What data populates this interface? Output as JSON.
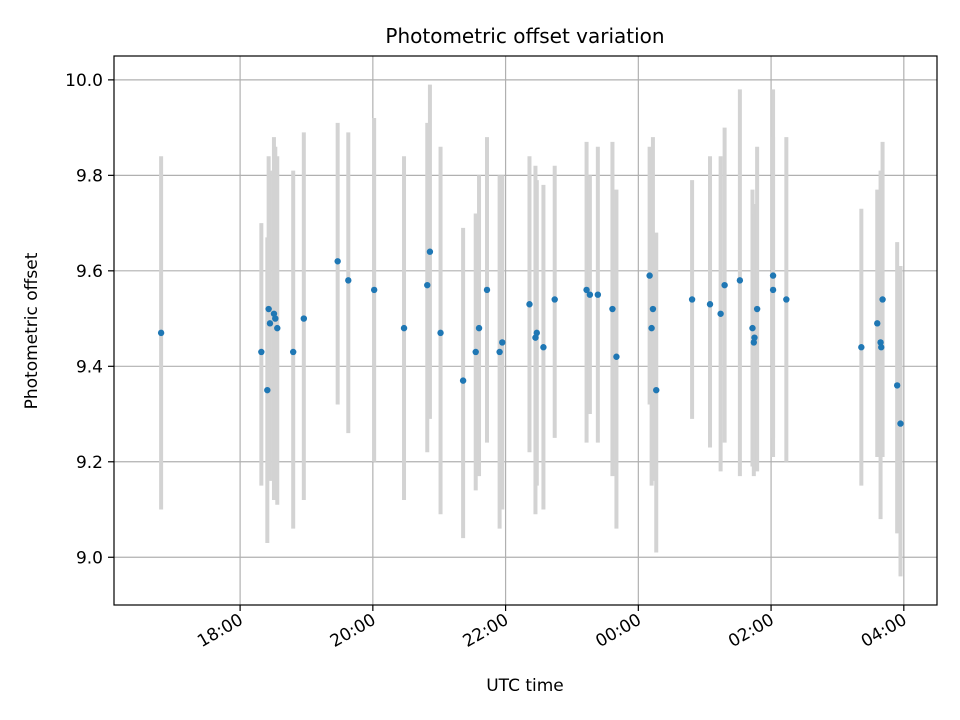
{
  "chart_data": {
    "type": "scatter",
    "title": "Photometric offset variation",
    "xlabel": "UTC time",
    "ylabel": "Photometric offset",
    "grid": true,
    "x_unit": "hours relative to 00:00 UTC",
    "xlim": [
      -7.9,
      4.5
    ],
    "ylim": [
      8.9,
      10.05
    ],
    "xticks": [
      {
        "value": -6,
        "label": "18:00"
      },
      {
        "value": -4,
        "label": "20:00"
      },
      {
        "value": -2,
        "label": "22:00"
      },
      {
        "value": 0,
        "label": "00:00"
      },
      {
        "value": 2,
        "label": "02:00"
      },
      {
        "value": 4,
        "label": "04:00"
      }
    ],
    "yticks": [
      {
        "value": 9.0,
        "label": "9.0"
      },
      {
        "value": 9.2,
        "label": "9.2"
      },
      {
        "value": 9.4,
        "label": "9.4"
      },
      {
        "value": 9.6,
        "label": "9.6"
      },
      {
        "value": 9.8,
        "label": "9.8"
      },
      {
        "value": 10.0,
        "label": "10.0"
      }
    ],
    "colors": {
      "points": "#1f77b4",
      "errorbars": "#d3d3d3",
      "grid": "#b0b0b0"
    },
    "series": [
      {
        "name": "offset",
        "points": [
          {
            "x": -7.19,
            "y": 9.47,
            "lo": 9.1,
            "hi": 9.84
          },
          {
            "x": -5.68,
            "y": 9.43,
            "lo": 9.15,
            "hi": 9.7
          },
          {
            "x": -5.59,
            "y": 9.35,
            "lo": 9.03,
            "hi": 9.67
          },
          {
            "x": -5.57,
            "y": 9.52,
            "lo": 9.2,
            "hi": 9.84
          },
          {
            "x": -5.55,
            "y": 9.49,
            "lo": 9.16,
            "hi": 9.81
          },
          {
            "x": -5.49,
            "y": 9.51,
            "lo": 9.12,
            "hi": 9.88
          },
          {
            "x": -5.47,
            "y": 9.5,
            "lo": 9.15,
            "hi": 9.86
          },
          {
            "x": -5.44,
            "y": 9.48,
            "lo": 9.11,
            "hi": 9.84
          },
          {
            "x": -5.2,
            "y": 9.43,
            "lo": 9.06,
            "hi": 9.81
          },
          {
            "x": -5.04,
            "y": 9.5,
            "lo": 9.12,
            "hi": 9.89
          },
          {
            "x": -4.53,
            "y": 9.62,
            "lo": 9.32,
            "hi": 9.91
          },
          {
            "x": -4.37,
            "y": 9.58,
            "lo": 9.26,
            "hi": 9.89
          },
          {
            "x": -3.98,
            "y": 9.56,
            "lo": 9.2,
            "hi": 9.92
          },
          {
            "x": -3.53,
            "y": 9.48,
            "lo": 9.12,
            "hi": 9.84
          },
          {
            "x": -3.18,
            "y": 9.57,
            "lo": 9.22,
            "hi": 9.91
          },
          {
            "x": -3.14,
            "y": 9.64,
            "lo": 9.29,
            "hi": 9.99
          },
          {
            "x": -2.98,
            "y": 9.47,
            "lo": 9.09,
            "hi": 9.86
          },
          {
            "x": -2.64,
            "y": 9.37,
            "lo": 9.04,
            "hi": 9.69
          },
          {
            "x": -2.45,
            "y": 9.43,
            "lo": 9.14,
            "hi": 9.72
          },
          {
            "x": -2.4,
            "y": 9.48,
            "lo": 9.17,
            "hi": 9.8
          },
          {
            "x": -2.28,
            "y": 9.56,
            "lo": 9.24,
            "hi": 9.88
          },
          {
            "x": -2.09,
            "y": 9.43,
            "lo": 9.06,
            "hi": 9.8
          },
          {
            "x": -2.05,
            "y": 9.45,
            "lo": 9.1,
            "hi": 9.8
          },
          {
            "x": -1.64,
            "y": 9.53,
            "lo": 9.22,
            "hi": 9.84
          },
          {
            "x": -1.55,
            "y": 9.46,
            "lo": 9.09,
            "hi": 9.82
          },
          {
            "x": -1.53,
            "y": 9.47,
            "lo": 9.15,
            "hi": 9.79
          },
          {
            "x": -1.43,
            "y": 9.44,
            "lo": 9.1,
            "hi": 9.78
          },
          {
            "x": -1.26,
            "y": 9.54,
            "lo": 9.25,
            "hi": 9.82
          },
          {
            "x": -0.78,
            "y": 9.56,
            "lo": 9.24,
            "hi": 9.87
          },
          {
            "x": -0.73,
            "y": 9.55,
            "lo": 9.3,
            "hi": 9.8
          },
          {
            "x": -0.61,
            "y": 9.55,
            "lo": 9.24,
            "hi": 9.86
          },
          {
            "x": -0.39,
            "y": 9.52,
            "lo": 9.17,
            "hi": 9.87
          },
          {
            "x": -0.33,
            "y": 9.42,
            "lo": 9.06,
            "hi": 9.77
          },
          {
            "x": 0.17,
            "y": 9.59,
            "lo": 9.32,
            "hi": 9.86
          },
          {
            "x": 0.2,
            "y": 9.48,
            "lo": 9.15,
            "hi": 9.83
          },
          {
            "x": 0.22,
            "y": 9.52,
            "lo": 9.16,
            "hi": 9.88
          },
          {
            "x": 0.27,
            "y": 9.35,
            "lo": 9.01,
            "hi": 9.68
          },
          {
            "x": 0.81,
            "y": 9.54,
            "lo": 9.29,
            "hi": 9.79
          },
          {
            "x": 1.08,
            "y": 9.53,
            "lo": 9.23,
            "hi": 9.84
          },
          {
            "x": 1.24,
            "y": 9.51,
            "lo": 9.18,
            "hi": 9.84
          },
          {
            "x": 1.3,
            "y": 9.57,
            "lo": 9.24,
            "hi": 9.9
          },
          {
            "x": 1.53,
            "y": 9.58,
            "lo": 9.17,
            "hi": 9.98
          },
          {
            "x": 1.72,
            "y": 9.48,
            "lo": 9.19,
            "hi": 9.77
          },
          {
            "x": 1.74,
            "y": 9.45,
            "lo": 9.17,
            "hi": 9.74
          },
          {
            "x": 1.75,
            "y": 9.46,
            "lo": 9.2,
            "hi": 9.72
          },
          {
            "x": 1.79,
            "y": 9.52,
            "lo": 9.18,
            "hi": 9.86
          },
          {
            "x": 2.03,
            "y": 9.59,
            "lo": 9.21,
            "hi": 9.98
          },
          {
            "x": 2.03,
            "y": 9.56,
            "lo": 9.25,
            "hi": 9.88
          },
          {
            "x": 2.23,
            "y": 9.54,
            "lo": 9.2,
            "hi": 9.88
          },
          {
            "x": 3.36,
            "y": 9.44,
            "lo": 9.15,
            "hi": 9.73
          },
          {
            "x": 3.6,
            "y": 9.49,
            "lo": 9.21,
            "hi": 9.77
          },
          {
            "x": 3.65,
            "y": 9.45,
            "lo": 9.08,
            "hi": 9.81
          },
          {
            "x": 3.66,
            "y": 9.44,
            "lo": 9.21,
            "hi": 9.68
          },
          {
            "x": 3.68,
            "y": 9.54,
            "lo": 9.21,
            "hi": 9.87
          },
          {
            "x": 3.9,
            "y": 9.36,
            "lo": 9.05,
            "hi": 9.66
          },
          {
            "x": 3.95,
            "y": 9.28,
            "lo": 8.96,
            "hi": 9.61
          }
        ]
      }
    ]
  }
}
